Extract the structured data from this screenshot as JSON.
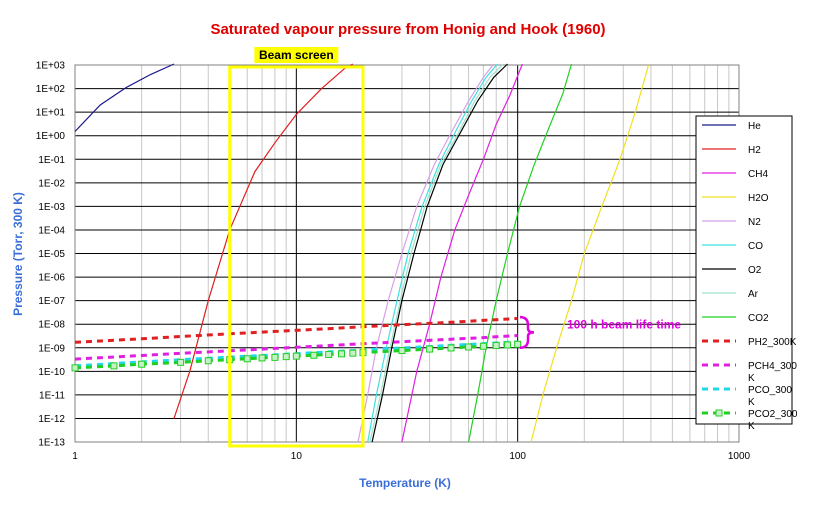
{
  "chart_data": {
    "type": "line",
    "title": "Saturated vapour pressure from Honig and Hook (1960)",
    "xlabel": "Temperature (K)",
    "ylabel": "Pressure (Torr, 300 K)",
    "x_scale": "log",
    "y_scale": "log",
    "xlim": [
      1,
      1000
    ],
    "ylim": [
      1e-13,
      1000.0
    ],
    "x_ticks": [
      "1",
      "10",
      "100",
      "1000"
    ],
    "y_ticks": [
      "1E-13",
      "1E-12",
      "1E-11",
      "1E-10",
      "1E-09",
      "1E-08",
      "1E-07",
      "1E-06",
      "1E-05",
      "1E-04",
      "1E-03",
      "1E-02",
      "1E-01",
      "1E+00",
      "1E+01",
      "1E+02",
      "1E+03"
    ],
    "grid": true,
    "legend_position": "right",
    "series": [
      {
        "name": "He",
        "color": "#1a1a8c",
        "style": "solid",
        "x": [
          1,
          1.3,
          1.7,
          2.2,
          2.8
        ],
        "y": [
          1.5,
          20,
          110,
          400,
          1100
        ]
      },
      {
        "name": "H2",
        "color": "#e02020",
        "style": "solid",
        "x": [
          2.8,
          3.3,
          4,
          5,
          6.5,
          8,
          10,
          13,
          16.5,
          18
        ],
        "y": [
          1e-12,
          1e-10,
          1e-07,
          0.0001,
          0.03,
          0.5,
          8,
          100,
          700,
          1100
        ]
      },
      {
        "name": "CH4",
        "color": "#e020e0",
        "style": "solid",
        "x": [
          30,
          35,
          40,
          45,
          52,
          60,
          70,
          80,
          92,
          105
        ],
        "y": [
          1e-13,
          1e-10,
          1e-08,
          1e-06,
          0.0001,
          0.003,
          0.1,
          3,
          50,
          1100
        ]
      },
      {
        "name": "H2O",
        "color": "#f0e020",
        "style": "solid",
        "x": [
          115,
          130,
          150,
          175,
          200,
          240,
          290,
          340,
          390
        ],
        "y": [
          1e-13,
          1e-11,
          1e-09,
          1e-07,
          1e-05,
          0.001,
          0.1,
          10,
          1000
        ]
      },
      {
        "name": "N2",
        "color": "#d8a0e8",
        "style": "solid",
        "x": [
          19,
          21,
          23,
          26,
          30,
          35,
          42,
          50,
          60,
          70,
          78
        ],
        "y": [
          1e-13,
          1e-11,
          1e-09,
          1e-07,
          1e-05,
          0.001,
          0.06,
          1.3,
          30,
          300,
          1100
        ]
      },
      {
        "name": "CO",
        "color": "#40e0e0",
        "style": "solid",
        "x": [
          21,
          23,
          25.5,
          28.5,
          32,
          37,
          44,
          52,
          62,
          72,
          81
        ],
        "y": [
          1e-13,
          1e-11,
          1e-09,
          1e-07,
          1e-05,
          0.001,
          0.06,
          1.3,
          30,
          300,
          1100
        ]
      },
      {
        "name": "O2",
        "color": "#000000",
        "style": "solid",
        "x": [
          22,
          24.5,
          27,
          30,
          34,
          39,
          46,
          55,
          66,
          78,
          90
        ],
        "y": [
          1e-13,
          1e-11,
          1e-09,
          1e-07,
          1e-05,
          0.001,
          0.06,
          1.3,
          30,
          300,
          1100
        ]
      },
      {
        "name": "Ar",
        "color": "#a0e0c8",
        "style": "solid",
        "x": [
          21.5,
          24,
          26.5,
          29.5,
          33,
          38,
          45,
          54,
          64,
          75,
          86
        ],
        "y": [
          1e-13,
          1e-11,
          1e-09,
          1e-07,
          1e-05,
          0.001,
          0.06,
          1.3,
          30,
          300,
          1100
        ]
      },
      {
        "name": "CO2",
        "color": "#20d020",
        "style": "solid",
        "x": [
          60,
          66,
          72,
          80,
          90,
          102,
          118,
          138,
          160,
          175
        ],
        "y": [
          1e-13,
          1e-11,
          1e-09,
          1e-07,
          1e-05,
          0.001,
          0.05,
          2,
          60,
          1100
        ]
      },
      {
        "name": "PH2_300K",
        "color": "#e02020",
        "style": "dashed",
        "x": [
          1,
          2,
          3,
          5,
          7,
          10,
          15,
          20,
          30,
          50,
          70,
          100
        ],
        "y": [
          1.7e-09,
          2.4e-09,
          3e-09,
          3.9e-09,
          4.6e-09,
          5.5e-09,
          6.7e-09,
          7.8e-09,
          9.5e-09,
          1.2e-08,
          1.45e-08,
          1.75e-08
        ]
      },
      {
        "name": "PCH4_300K",
        "color": "#e020e0",
        "style": "dashed",
        "x": [
          1,
          2,
          3,
          5,
          7,
          10,
          15,
          20,
          30,
          50,
          70,
          100
        ],
        "y": [
          3.3e-10,
          4.7e-10,
          5.8e-10,
          7.4e-10,
          8.8e-10,
          1.05e-09,
          1.28e-09,
          1.48e-09,
          1.8e-09,
          2.3e-09,
          2.7e-09,
          3.3e-09
        ]
      },
      {
        "name": "PCO_300K",
        "color": "#20d8e8",
        "style": "dashed",
        "x": [
          1,
          2,
          3,
          5,
          7,
          10,
          15,
          20,
          30,
          50,
          70,
          100
        ],
        "y": [
          1.7e-10,
          2.5e-10,
          3.1e-10,
          4e-10,
          4.7e-10,
          5.6e-10,
          6.9e-10,
          8e-10,
          9.8e-10,
          1.26e-09,
          1.5e-09,
          1.78e-09
        ]
      },
      {
        "name": "PCO2_300K",
        "color": "#20d020",
        "style": "dashed",
        "marker": "square",
        "x": [
          1,
          1.5,
          2,
          3,
          4,
          5,
          6,
          7,
          8,
          9,
          10,
          12,
          14,
          16,
          18,
          20,
          30,
          40,
          50,
          60,
          70,
          80,
          90,
          100
        ],
        "y": [
          1.4e-10,
          1.7e-10,
          2e-10,
          2.4e-10,
          2.8e-10,
          3.1e-10,
          3.4e-10,
          3.7e-10,
          3.9e-10,
          4.2e-10,
          4.4e-10,
          4.8e-10,
          5.2e-10,
          5.5e-10,
          5.9e-10,
          6.2e-10,
          7.6e-10,
          8.8e-10,
          9.8e-10,
          1.08e-09,
          1.16e-09,
          1.24e-09,
          1.32e-09,
          1.4e-09
        ]
      }
    ],
    "legend": [
      {
        "label": "He",
        "color": "#1a1a8c",
        "style": "solid"
      },
      {
        "label": "H2",
        "color": "#e02020",
        "style": "solid"
      },
      {
        "label": "CH4",
        "color": "#e020e0",
        "style": "solid"
      },
      {
        "label": "H2O",
        "color": "#f0e020",
        "style": "solid"
      },
      {
        "label": "N2",
        "color": "#d8a0e8",
        "style": "solid"
      },
      {
        "label": "CO",
        "color": "#40e0e0",
        "style": "solid"
      },
      {
        "label": "O2",
        "color": "#000000",
        "style": "solid"
      },
      {
        "label": "Ar",
        "color": "#a0e0c8",
        "style": "solid"
      },
      {
        "label": "CO2",
        "color": "#20d020",
        "style": "solid"
      },
      {
        "label": "PH2_300K",
        "color": "#e02020",
        "style": "dashed"
      },
      {
        "label": "PCH4_300\nK",
        "color": "#e020e0",
        "style": "dashed"
      },
      {
        "label": "PCO_300\nK",
        "color": "#20d8e8",
        "style": "dashed"
      },
      {
        "label": "PCO2_300\nK",
        "color": "#20d020",
        "style": "dashed",
        "marker": "square"
      }
    ],
    "annotations": {
      "beam_screen_label": "Beam screen",
      "beam_screen_range": [
        5,
        20
      ],
      "beam_screen_color": "#ffff00",
      "lifetime_label": "100 h beam life time",
      "lifetime_color": "#e000e0",
      "lifetime_range": [
        1e-09,
        2e-08
      ]
    }
  }
}
